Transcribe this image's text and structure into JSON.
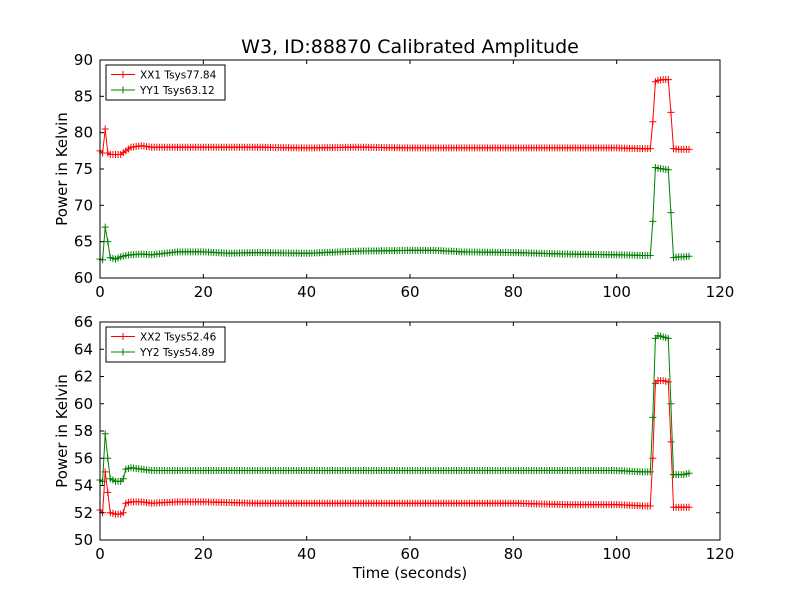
{
  "figure": {
    "title": "W3, ID:88870 Calibrated Amplitude",
    "xlabel": "Time (seconds)"
  },
  "chart_data": [
    {
      "type": "line",
      "title": "W3, ID:88870 Calibrated Amplitude",
      "xlabel": "",
      "ylabel": "Power in Kelvin",
      "xlim": [
        0,
        120
      ],
      "ylim": [
        60,
        90
      ],
      "xticks": [
        0,
        20,
        40,
        60,
        80,
        100,
        120
      ],
      "yticks": [
        60,
        65,
        70,
        75,
        80,
        85,
        90
      ],
      "grid": false,
      "legend_position": "top-left",
      "marker": "+",
      "series": [
        {
          "name": "XX1 Tsys77.84",
          "color": "#ff0000",
          "x": [
            0,
            0.5,
            1,
            1.5,
            2,
            3,
            4,
            5,
            6,
            8,
            10,
            15,
            20,
            30,
            40,
            50,
            60,
            70,
            80,
            90,
            100,
            105,
            106.5,
            107,
            107.5,
            108,
            109,
            110,
            110.5,
            111,
            112,
            113,
            114
          ],
          "y": [
            77.5,
            77.2,
            80.5,
            77.2,
            77.0,
            77.0,
            77.0,
            77.5,
            78.0,
            78.2,
            78.0,
            78.0,
            78.0,
            78.0,
            77.9,
            78.0,
            77.9,
            77.9,
            77.9,
            77.9,
            77.9,
            77.8,
            77.8,
            81.5,
            87.0,
            87.2,
            87.3,
            87.3,
            82.8,
            77.8,
            77.7,
            77.7,
            77.7
          ]
        },
        {
          "name": "YY1 Tsys63.12",
          "color": "#008000",
          "x": [
            0,
            0.5,
            1,
            1.5,
            2,
            3,
            4,
            5,
            6,
            8,
            10,
            15,
            20,
            25,
            30,
            40,
            50,
            60,
            65,
            70,
            80,
            90,
            100,
            105,
            106.5,
            107,
            107.5,
            108,
            109,
            110,
            110.5,
            111,
            112,
            113,
            114
          ],
          "y": [
            62.6,
            62.5,
            67.0,
            65.0,
            62.8,
            62.6,
            62.9,
            63.1,
            63.2,
            63.3,
            63.2,
            63.6,
            63.6,
            63.4,
            63.5,
            63.4,
            63.7,
            63.8,
            63.8,
            63.6,
            63.5,
            63.3,
            63.2,
            63.1,
            63.1,
            67.8,
            75.2,
            75.1,
            75.0,
            74.9,
            69.0,
            62.8,
            62.9,
            62.9,
            63.0
          ]
        }
      ]
    },
    {
      "type": "line",
      "title": "",
      "xlabel": "Time (seconds)",
      "ylabel": "Power in Kelvin",
      "xlim": [
        0,
        120
      ],
      "ylim": [
        50,
        66
      ],
      "xticks": [
        0,
        20,
        40,
        60,
        80,
        100,
        120
      ],
      "yticks": [
        50,
        52,
        54,
        56,
        58,
        60,
        62,
        64,
        66
      ],
      "grid": false,
      "legend_position": "top-left",
      "marker": "+",
      "series": [
        {
          "name": "XX2 Tsys52.46",
          "color": "#ff0000",
          "x": [
            0,
            0.5,
            1,
            1.5,
            2,
            3,
            4,
            4.5,
            5,
            6,
            8,
            10,
            15,
            20,
            30,
            40,
            50,
            60,
            70,
            80,
            90,
            100,
            105,
            106.5,
            107,
            107.5,
            108,
            109,
            110,
            110.5,
            111,
            112,
            113,
            114
          ],
          "y": [
            52.2,
            52.0,
            55.0,
            53.5,
            52.0,
            51.9,
            51.9,
            52.0,
            52.7,
            52.8,
            52.8,
            52.7,
            52.8,
            52.8,
            52.7,
            52.7,
            52.7,
            52.7,
            52.7,
            52.7,
            52.6,
            52.6,
            52.5,
            52.5,
            56.0,
            61.5,
            61.7,
            61.7,
            61.6,
            57.2,
            52.4,
            52.4,
            52.4,
            52.4
          ]
        },
        {
          "name": "YY2 Tsys54.89",
          "color": "#008000",
          "x": [
            0,
            0.5,
            1,
            1.5,
            2,
            3,
            4,
            4.5,
            5,
            6,
            8,
            10,
            15,
            20,
            30,
            40,
            50,
            60,
            70,
            80,
            90,
            100,
            105,
            106.5,
            107,
            107.5,
            108,
            109,
            110,
            110.5,
            111,
            112,
            113,
            114
          ],
          "y": [
            54.4,
            54.3,
            57.8,
            56.0,
            54.5,
            54.3,
            54.3,
            54.5,
            55.2,
            55.3,
            55.2,
            55.1,
            55.1,
            55.1,
            55.1,
            55.1,
            55.1,
            55.1,
            55.1,
            55.1,
            55.1,
            55.1,
            55.0,
            55.0,
            59.0,
            64.8,
            65.0,
            64.9,
            64.8,
            60.0,
            54.8,
            54.8,
            54.8,
            54.9
          ]
        }
      ]
    }
  ]
}
